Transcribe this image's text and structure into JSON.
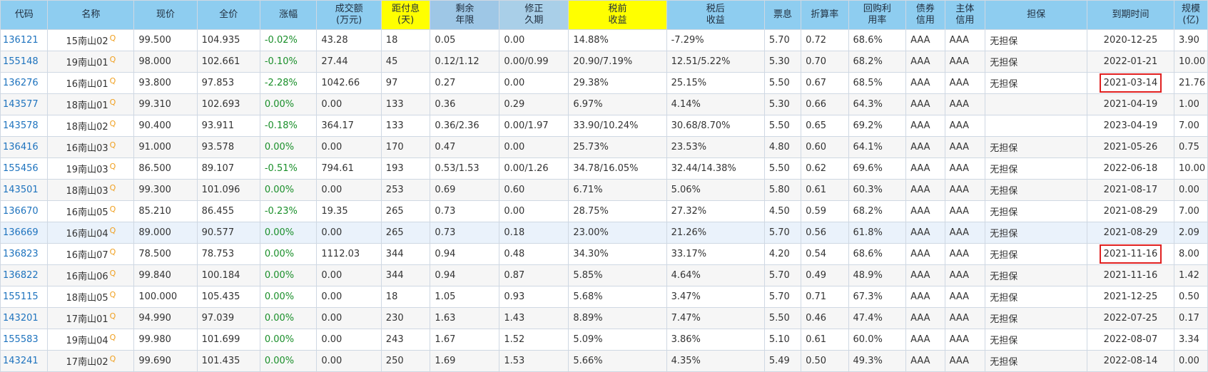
{
  "headers": [
    {
      "key": "code",
      "label": "代码"
    },
    {
      "key": "name",
      "label": "名称"
    },
    {
      "key": "price",
      "label": "现价"
    },
    {
      "key": "full",
      "label": "全价"
    },
    {
      "key": "change",
      "label": "涨幅"
    },
    {
      "key": "volume",
      "label": "成交额\n(万元)"
    },
    {
      "key": "days",
      "label": "距付息\n(天)"
    },
    {
      "key": "remain",
      "label": "剩余\n年限"
    },
    {
      "key": "duration",
      "label": "修正\n久期"
    },
    {
      "key": "pretax",
      "label": "税前\n收益"
    },
    {
      "key": "aftertax",
      "label": "税后\n收益"
    },
    {
      "key": "coupon",
      "label": "票息"
    },
    {
      "key": "discount",
      "label": "折算率"
    },
    {
      "key": "repo",
      "label": "回购利\n用率"
    },
    {
      "key": "bondcredit",
      "label": "债券\n信用"
    },
    {
      "key": "issuercredit",
      "label": "主体\n信用"
    },
    {
      "key": "guarantee",
      "label": "担保"
    },
    {
      "key": "maturity",
      "label": "到期时间"
    },
    {
      "key": "scale",
      "label": "规模\n(亿)"
    }
  ],
  "rows": [
    {
      "code": "136121",
      "name": "15南山02",
      "price": "99.500",
      "full": "104.935",
      "change": "-0.02%",
      "volume": "43.28",
      "days": "18",
      "remain": "0.05",
      "duration": "0.00",
      "pretax": "14.88%",
      "aftertax": "-7.29%",
      "coupon": "5.70",
      "discount": "0.72",
      "repo": "68.6%",
      "bondcredit": "AAA",
      "issuercredit": "AAA",
      "guarantee": "无担保",
      "maturity": "2020-12-25",
      "scale": "3.90"
    },
    {
      "code": "155148",
      "name": "19南山01",
      "price": "98.000",
      "full": "102.661",
      "change": "-0.10%",
      "volume": "27.44",
      "days": "45",
      "remain": "0.12/1.12",
      "duration": "0.00/0.99",
      "pretax": "20.90/7.19%",
      "aftertax": "12.51/5.22%",
      "coupon": "5.30",
      "discount": "0.70",
      "repo": "68.2%",
      "bondcredit": "AAA",
      "issuercredit": "AAA",
      "guarantee": "无担保",
      "maturity": "2022-01-21",
      "scale": "10.00"
    },
    {
      "code": "136276",
      "name": "16南山01",
      "price": "93.800",
      "full": "97.853",
      "change": "-2.28%",
      "volume": "1042.66",
      "days": "97",
      "remain": "0.27",
      "duration": "0.00",
      "pretax": "29.38%",
      "aftertax": "25.15%",
      "coupon": "5.50",
      "discount": "0.67",
      "repo": "68.5%",
      "bondcredit": "AAA",
      "issuercredit": "AAA",
      "guarantee": "无担保",
      "maturity": "2021-03-14",
      "scale": "21.76",
      "boxed": true
    },
    {
      "code": "143577",
      "name": "18南山01",
      "price": "99.310",
      "full": "102.693",
      "change": "0.00%",
      "volume": "0.00",
      "days": "133",
      "remain": "0.36",
      "duration": "0.29",
      "pretax": "6.97%",
      "aftertax": "4.14%",
      "coupon": "5.30",
      "discount": "0.66",
      "repo": "64.3%",
      "bondcredit": "AAA",
      "issuercredit": "AAA",
      "guarantee": "",
      "maturity": "2021-04-19",
      "scale": "1.00"
    },
    {
      "code": "143578",
      "name": "18南山02",
      "price": "90.400",
      "full": "93.911",
      "change": "-0.18%",
      "volume": "364.17",
      "days": "133",
      "remain": "0.36/2.36",
      "duration": "0.00/1.97",
      "pretax": "33.90/10.24%",
      "aftertax": "30.68/8.70%",
      "coupon": "5.50",
      "discount": "0.65",
      "repo": "69.2%",
      "bondcredit": "AAA",
      "issuercredit": "AAA",
      "guarantee": "",
      "maturity": "2023-04-19",
      "scale": "7.00"
    },
    {
      "code": "136416",
      "name": "16南山03",
      "price": "91.000",
      "full": "93.578",
      "change": "0.00%",
      "volume": "0.00",
      "days": "170",
      "remain": "0.47",
      "duration": "0.00",
      "pretax": "25.73%",
      "aftertax": "23.53%",
      "coupon": "4.80",
      "discount": "0.60",
      "repo": "64.1%",
      "bondcredit": "AAA",
      "issuercredit": "AAA",
      "guarantee": "无担保",
      "maturity": "2021-05-26",
      "scale": "0.75"
    },
    {
      "code": "155456",
      "name": "19南山03",
      "price": "86.500",
      "full": "89.107",
      "change": "-0.51%",
      "volume": "794.61",
      "days": "193",
      "remain": "0.53/1.53",
      "duration": "0.00/1.26",
      "pretax": "34.78/16.05%",
      "aftertax": "32.44/14.38%",
      "coupon": "5.50",
      "discount": "0.62",
      "repo": "69.6%",
      "bondcredit": "AAA",
      "issuercredit": "AAA",
      "guarantee": "无担保",
      "maturity": "2022-06-18",
      "scale": "10.00"
    },
    {
      "code": "143501",
      "name": "18南山03",
      "price": "99.300",
      "full": "101.096",
      "change": "0.00%",
      "volume": "0.00",
      "days": "253",
      "remain": "0.69",
      "duration": "0.60",
      "pretax": "6.71%",
      "aftertax": "5.06%",
      "coupon": "5.80",
      "discount": "0.61",
      "repo": "60.3%",
      "bondcredit": "AAA",
      "issuercredit": "AAA",
      "guarantee": "无担保",
      "maturity": "2021-08-17",
      "scale": "0.00"
    },
    {
      "code": "136670",
      "name": "16南山05",
      "price": "85.210",
      "full": "86.455",
      "change": "-0.23%",
      "volume": "19.35",
      "days": "265",
      "remain": "0.73",
      "duration": "0.00",
      "pretax": "28.75%",
      "aftertax": "27.32%",
      "coupon": "4.50",
      "discount": "0.59",
      "repo": "68.2%",
      "bondcredit": "AAA",
      "issuercredit": "AAA",
      "guarantee": "无担保",
      "maturity": "2021-08-29",
      "scale": "7.00"
    },
    {
      "code": "136669",
      "name": "16南山04",
      "price": "89.000",
      "full": "90.577",
      "change": "0.00%",
      "volume": "0.00",
      "days": "265",
      "remain": "0.73",
      "duration": "0.18",
      "pretax": "23.00%",
      "aftertax": "21.26%",
      "coupon": "5.70",
      "discount": "0.56",
      "repo": "61.8%",
      "bondcredit": "AAA",
      "issuercredit": "AAA",
      "guarantee": "无担保",
      "maturity": "2021-08-29",
      "scale": "2.09",
      "selected": true
    },
    {
      "code": "136823",
      "name": "16南山07",
      "price": "78.500",
      "full": "78.753",
      "change": "0.00%",
      "volume": "1112.03",
      "days": "344",
      "remain": "0.94",
      "duration": "0.48",
      "pretax": "34.30%",
      "aftertax": "33.17%",
      "coupon": "4.20",
      "discount": "0.54",
      "repo": "68.6%",
      "bondcredit": "AAA",
      "issuercredit": "AAA",
      "guarantee": "无担保",
      "maturity": "2021-11-16",
      "scale": "8.00",
      "boxed": true
    },
    {
      "code": "136822",
      "name": "16南山06",
      "price": "99.840",
      "full": "100.184",
      "change": "0.00%",
      "volume": "0.00",
      "days": "344",
      "remain": "0.94",
      "duration": "0.87",
      "pretax": "5.85%",
      "aftertax": "4.64%",
      "coupon": "5.70",
      "discount": "0.49",
      "repo": "48.9%",
      "bondcredit": "AAA",
      "issuercredit": "AAA",
      "guarantee": "无担保",
      "maturity": "2021-11-16",
      "scale": "1.42"
    },
    {
      "code": "155115",
      "name": "18南山05",
      "price": "100.000",
      "full": "105.435",
      "change": "0.00%",
      "volume": "0.00",
      "days": "18",
      "remain": "1.05",
      "duration": "0.93",
      "pretax": "5.68%",
      "aftertax": "3.47%",
      "coupon": "5.70",
      "discount": "0.71",
      "repo": "67.3%",
      "bondcredit": "AAA",
      "issuercredit": "AAA",
      "guarantee": "无担保",
      "maturity": "2021-12-25",
      "scale": "0.50"
    },
    {
      "code": "143201",
      "name": "17南山01",
      "price": "94.990",
      "full": "97.039",
      "change": "0.00%",
      "volume": "0.00",
      "days": "230",
      "remain": "1.63",
      "duration": "1.43",
      "pretax": "8.89%",
      "aftertax": "7.47%",
      "coupon": "5.50",
      "discount": "0.46",
      "repo": "47.4%",
      "bondcredit": "AAA",
      "issuercredit": "AAA",
      "guarantee": "无担保",
      "maturity": "2022-07-25",
      "scale": "0.17"
    },
    {
      "code": "155583",
      "name": "19南山04",
      "price": "99.980",
      "full": "101.699",
      "change": "0.00%",
      "volume": "0.00",
      "days": "243",
      "remain": "1.67",
      "duration": "1.52",
      "pretax": "5.09%",
      "aftertax": "3.86%",
      "coupon": "5.10",
      "discount": "0.61",
      "repo": "60.0%",
      "bondcredit": "AAA",
      "issuercredit": "AAA",
      "guarantee": "无担保",
      "maturity": "2022-08-07",
      "scale": "3.34"
    },
    {
      "code": "143241",
      "name": "17南山02",
      "price": "99.690",
      "full": "101.435",
      "change": "0.00%",
      "volume": "0.00",
      "days": "250",
      "remain": "1.69",
      "duration": "1.53",
      "pretax": "5.66%",
      "aftertax": "4.35%",
      "coupon": "5.49",
      "discount": "0.50",
      "repo": "49.3%",
      "bondcredit": "AAA",
      "issuercredit": "AAA",
      "guarantee": "无担保",
      "maturity": "2022-08-14",
      "scale": "0.00"
    }
  ],
  "icons": {
    "quote_marker": "Q"
  },
  "colors": {
    "header_bg": "#8ecdf0",
    "highlight_yellow": "#ffff00",
    "code_link": "#1e73be",
    "change_green": "#1a8f2a",
    "box_red": "#e02020"
  }
}
